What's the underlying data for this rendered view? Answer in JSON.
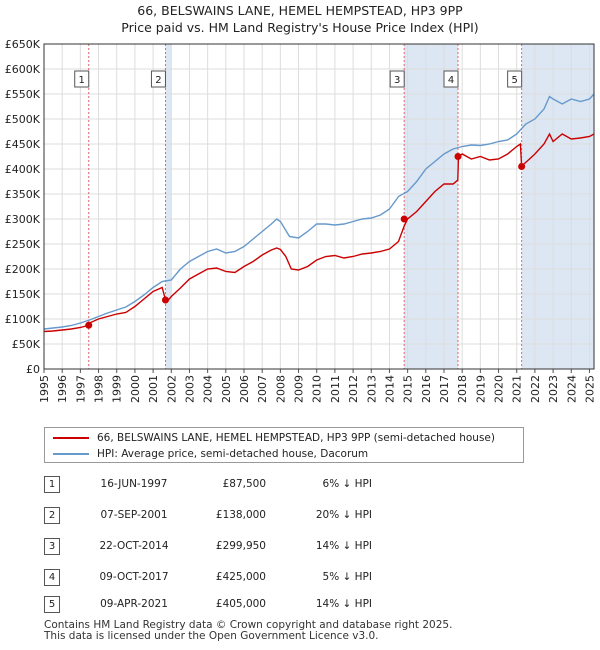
{
  "chart_data": {
    "type": "line",
    "title": "66, BELSWAINS LANE, HEMEL HEMPSTEAD, HP3 9PP",
    "subtitle": "Price paid vs. HM Land Registry's House Price Index (HPI)",
    "xlabel": "",
    "ylabel": "",
    "xlim": [
      1995,
      2025.25
    ],
    "ylim": [
      0,
      650000
    ],
    "x_ticks": [
      "1995",
      "1996",
      "1997",
      "1998",
      "1999",
      "2000",
      "2001",
      "2002",
      "2003",
      "2004",
      "2005",
      "2006",
      "2007",
      "2008",
      "2009",
      "2010",
      "2011",
      "2012",
      "2013",
      "2014",
      "2015",
      "2016",
      "2017",
      "2018",
      "2019",
      "2020",
      "2021",
      "2022",
      "2023",
      "2024",
      "2025"
    ],
    "y_ticks": [
      {
        "value": 0,
        "label": "£0"
      },
      {
        "value": 50000,
        "label": "£50K"
      },
      {
        "value": 100000,
        "label": "£100K"
      },
      {
        "value": 150000,
        "label": "£150K"
      },
      {
        "value": 200000,
        "label": "£200K"
      },
      {
        "value": 250000,
        "label": "£250K"
      },
      {
        "value": 300000,
        "label": "£300K"
      },
      {
        "value": 350000,
        "label": "£350K"
      },
      {
        "value": 400000,
        "label": "£400K"
      },
      {
        "value": 450000,
        "label": "£450K"
      },
      {
        "value": 500000,
        "label": "£500K"
      },
      {
        "value": 550000,
        "label": "£550K"
      },
      {
        "value": 600000,
        "label": "£600K"
      },
      {
        "value": 650000,
        "label": "£650K"
      }
    ],
    "series": [
      {
        "name": "66, BELSWAINS LANE, HEMEL HEMPSTEAD, HP3 9PP (semi-detached house)",
        "color": "#cc0000",
        "x": [
          1995.0,
          1995.5,
          1996.0,
          1996.5,
          1997.0,
          1997.46,
          1997.5,
          1998.0,
          1998.5,
          1999.0,
          1999.5,
          2000.0,
          2000.5,
          2001.0,
          2001.5,
          2001.68,
          2001.75,
          2002.0,
          2002.5,
          2003.0,
          2003.5,
          2004.0,
          2004.5,
          2005.0,
          2005.5,
          2006.0,
          2006.5,
          2007.0,
          2007.5,
          2007.8,
          2008.0,
          2008.3,
          2008.6,
          2009.0,
          2009.5,
          2010.0,
          2010.5,
          2011.0,
          2011.5,
          2012.0,
          2012.5,
          2013.0,
          2013.5,
          2014.0,
          2014.5,
          2014.8,
          2015.0,
          2015.5,
          2016.0,
          2016.5,
          2017.0,
          2017.5,
          2017.76,
          2017.8,
          2018.0,
          2018.5,
          2019.0,
          2019.5,
          2020.0,
          2020.5,
          2021.0,
          2021.2,
          2021.27,
          2021.4,
          2021.7,
          2022.0,
          2022.5,
          2022.8,
          2023.0,
          2023.5,
          2024.0,
          2024.5,
          2025.0,
          2025.25
        ],
        "values": [
          75000,
          76000,
          78000,
          80000,
          83000,
          87500,
          92000,
          100000,
          105000,
          110000,
          113000,
          125000,
          140000,
          155000,
          163000,
          138000,
          134000,
          145000,
          162000,
          180000,
          190000,
          200000,
          202000,
          195000,
          193000,
          205000,
          215000,
          228000,
          238000,
          242000,
          239000,
          225000,
          200000,
          198000,
          205000,
          218000,
          225000,
          227000,
          222000,
          225000,
          230000,
          232000,
          235000,
          240000,
          255000,
          285000,
          299950,
          315000,
          335000,
          355000,
          370000,
          370000,
          378000,
          425000,
          430000,
          420000,
          425000,
          418000,
          420000,
          430000,
          445000,
          450000,
          405000,
          410000,
          420000,
          430000,
          450000,
          470000,
          455000,
          470000,
          460000,
          462000,
          465000,
          470000
        ]
      },
      {
        "name": "HPI: Average price, semi-detached house, Dacorum",
        "color": "#6699cc",
        "x": [
          1995.0,
          1995.5,
          1996.0,
          1996.5,
          1997.0,
          1997.5,
          1998.0,
          1998.5,
          1999.0,
          1999.5,
          2000.0,
          2000.5,
          2001.0,
          2001.5,
          2002.0,
          2002.5,
          2003.0,
          2003.5,
          2004.0,
          2004.5,
          2005.0,
          2005.5,
          2006.0,
          2006.5,
          2007.0,
          2007.5,
          2007.8,
          2008.0,
          2008.5,
          2009.0,
          2009.5,
          2010.0,
          2010.5,
          2011.0,
          2011.5,
          2012.0,
          2012.5,
          2013.0,
          2013.5,
          2014.0,
          2014.5,
          2015.0,
          2015.5,
          2016.0,
          2016.5,
          2017.0,
          2017.5,
          2018.0,
          2018.5,
          2019.0,
          2019.5,
          2020.0,
          2020.5,
          2021.0,
          2021.5,
          2022.0,
          2022.5,
          2022.8,
          2023.0,
          2023.5,
          2024.0,
          2024.5,
          2025.0,
          2025.25
        ],
        "values": [
          80000,
          82000,
          84000,
          87000,
          92000,
          98000,
          105000,
          112000,
          118000,
          124000,
          135000,
          148000,
          163000,
          175000,
          178000,
          200000,
          215000,
          225000,
          235000,
          240000,
          232000,
          235000,
          245000,
          260000,
          275000,
          290000,
          300000,
          295000,
          265000,
          262000,
          275000,
          290000,
          290000,
          288000,
          290000,
          295000,
          300000,
          302000,
          308000,
          320000,
          345000,
          355000,
          375000,
          400000,
          415000,
          430000,
          440000,
          445000,
          448000,
          447000,
          450000,
          455000,
          458000,
          470000,
          490000,
          500000,
          520000,
          545000,
          540000,
          530000,
          540000,
          535000,
          540000,
          550000
        ]
      }
    ],
    "sales": [
      {
        "id": "1",
        "date": "16-JUN-1997",
        "year": 1997.46,
        "price": 87500,
        "price_label": "£87,500",
        "hpi": "6% ↓ HPI"
      },
      {
        "id": "2",
        "date": "07-SEP-2001",
        "year": 2001.68,
        "price": 138000,
        "price_label": "£138,000",
        "hpi": "20% ↓ HPI"
      },
      {
        "id": "3",
        "date": "22-OCT-2014",
        "year": 2014.81,
        "price": 299950,
        "price_label": "£299,950",
        "hpi": "14% ↓ HPI"
      },
      {
        "id": "4",
        "date": "09-OCT-2017",
        "year": 2017.77,
        "price": 425000,
        "price_label": "£425,000",
        "hpi": "5% ↓ HPI"
      },
      {
        "id": "5",
        "date": "09-APR-2021",
        "year": 2021.27,
        "price": 405000,
        "price_label": "£405,000",
        "hpi": "14% ↓ HPI"
      }
    ],
    "shaded_ranges": [
      [
        2001.68,
        2002.0
      ],
      [
        2014.81,
        2017.77
      ],
      [
        2021.27,
        2025.25
      ]
    ],
    "colors": {
      "grid": "#dddddd",
      "shade": "#dde7f4",
      "marker_line": "#e06666",
      "axis": "#333333"
    }
  },
  "legend": {
    "red_label": "66, BELSWAINS LANE, HEMEL HEMPSTEAD, HP3 9PP (semi-detached house)",
    "blue_label": "HPI: Average price, semi-detached house, Dacorum"
  },
  "footer": {
    "line1": "Contains HM Land Registry data © Crown copyright and database right 2025.",
    "line2": "This data is licensed under the Open Government Licence v3.0."
  }
}
